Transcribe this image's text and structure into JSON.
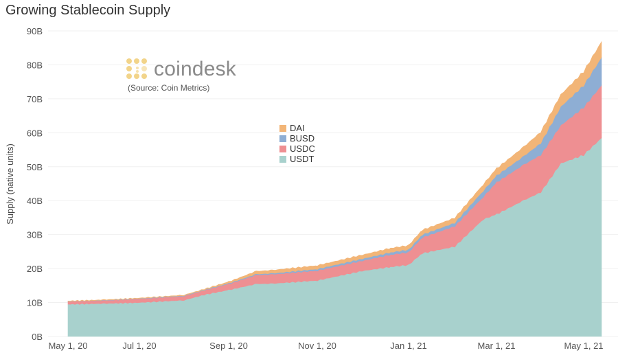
{
  "chart_data": {
    "type": "area",
    "stacked": true,
    "title": "Growing Stablecoin Supply",
    "xlabel": "",
    "ylabel": "Supply (native units)",
    "ylim": [
      0,
      90
    ],
    "yunit": "B",
    "yticks": [
      "0B",
      "10B",
      "20B",
      "30B",
      "40B",
      "50B",
      "60B",
      "70B",
      "80B",
      "90B"
    ],
    "ytick_values": [
      0,
      10,
      20,
      30,
      40,
      50,
      60,
      70,
      80,
      90
    ],
    "xticks": [
      "May 1, 20",
      "Jul 1, 20",
      "Sep 1, 20",
      "Nov 1, 20",
      "Jan 1, 21",
      "Mar 1, 21",
      "May 1, 21"
    ],
    "xtick_days": [
      0,
      61,
      123,
      184,
      245,
      304,
      365
    ],
    "grid": true,
    "legend_position": "center",
    "x_days": [
      0,
      31,
      61,
      92,
      106,
      123,
      142,
      153,
      184,
      214,
      233,
      245,
      254,
      276,
      295,
      304,
      323,
      335,
      349,
      365,
      377
    ],
    "series": [
      {
        "name": "USDT",
        "color": "#a8d1cd",
        "values": [
          9.5,
          9.7,
          10.0,
          10.7,
          12.3,
          13.7,
          15.5,
          15.6,
          16.5,
          19.3,
          20.5,
          21.1,
          24.5,
          26.5,
          34.5,
          36.0,
          40.1,
          42.5,
          51.0,
          53.5,
          58.5
        ]
      },
      {
        "name": "USDC",
        "color": "#ee8f92",
        "values": [
          0.8,
          0.9,
          1.1,
          1.2,
          1.3,
          1.8,
          2.6,
          2.7,
          2.9,
          3.0,
          3.6,
          3.7,
          4.6,
          6.0,
          6.6,
          9.4,
          10.5,
          11.0,
          11.2,
          14.0,
          15.5
        ]
      },
      {
        "name": "BUSD",
        "color": "#8eaed4",
        "values": [
          0.05,
          0.1,
          0.1,
          0.15,
          0.15,
          0.2,
          0.3,
          0.3,
          0.5,
          0.6,
          0.7,
          0.8,
          0.9,
          1.0,
          1.8,
          2.0,
          2.5,
          3.5,
          5.5,
          6.5,
          8.2
        ]
      },
      {
        "name": "DAI",
        "color": "#f2b577",
        "values": [
          0.1,
          0.1,
          0.1,
          0.15,
          0.2,
          0.4,
          0.8,
          0.9,
          1.0,
          1.1,
          1.2,
          1.2,
          1.3,
          1.4,
          1.8,
          2.0,
          2.7,
          3.2,
          3.5,
          4.0,
          4.6
        ]
      }
    ],
    "legend_order": [
      "DAI",
      "BUSD",
      "USDC",
      "USDT"
    ]
  },
  "branding": {
    "logo_text": "coindesk",
    "source": "(Source: Coin Metrics)"
  }
}
